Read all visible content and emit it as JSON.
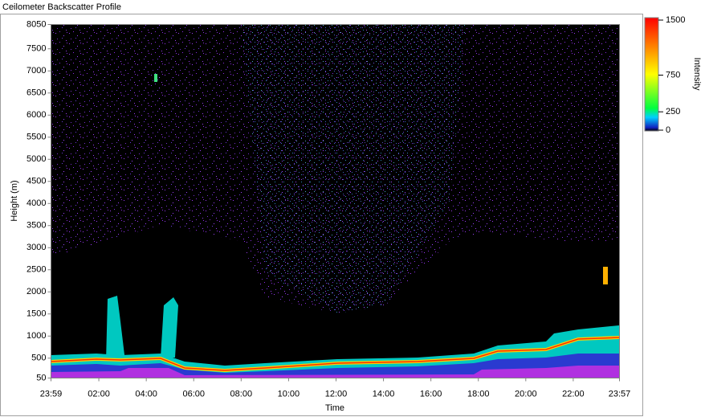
{
  "chart_data": {
    "type": "heatmap",
    "title": "Ceilometer Backscatter Profile",
    "xlabel": "Time",
    "ylabel": "Height (m)",
    "colorbar_label": "Intensity",
    "xlim": [
      0,
      1438
    ],
    "xticks": [
      {
        "value": 0,
        "label": "23:59"
      },
      {
        "value": 121,
        "label": "02:00"
      },
      {
        "value": 241,
        "label": "04:00"
      },
      {
        "value": 361,
        "label": "06:00"
      },
      {
        "value": 481,
        "label": "08:00"
      },
      {
        "value": 601,
        "label": "10:00"
      },
      {
        "value": 721,
        "label": "12:00"
      },
      {
        "value": 841,
        "label": "14:00"
      },
      {
        "value": 961,
        "label": "16:00"
      },
      {
        "value": 1081,
        "label": "18:00"
      },
      {
        "value": 1201,
        "label": "20:00"
      },
      {
        "value": 1321,
        "label": "22:00"
      },
      {
        "value": 1438,
        "label": "23:57"
      }
    ],
    "ylim": [
      50,
      8050
    ],
    "yticks": [
      50,
      500,
      1000,
      1500,
      2000,
      2500,
      3000,
      3500,
      4000,
      4500,
      5000,
      5500,
      6000,
      6500,
      7000,
      7500,
      8050
    ],
    "clim": [
      0,
      1500
    ],
    "cticks": [
      0,
      250,
      750,
      1500
    ]
  }
}
